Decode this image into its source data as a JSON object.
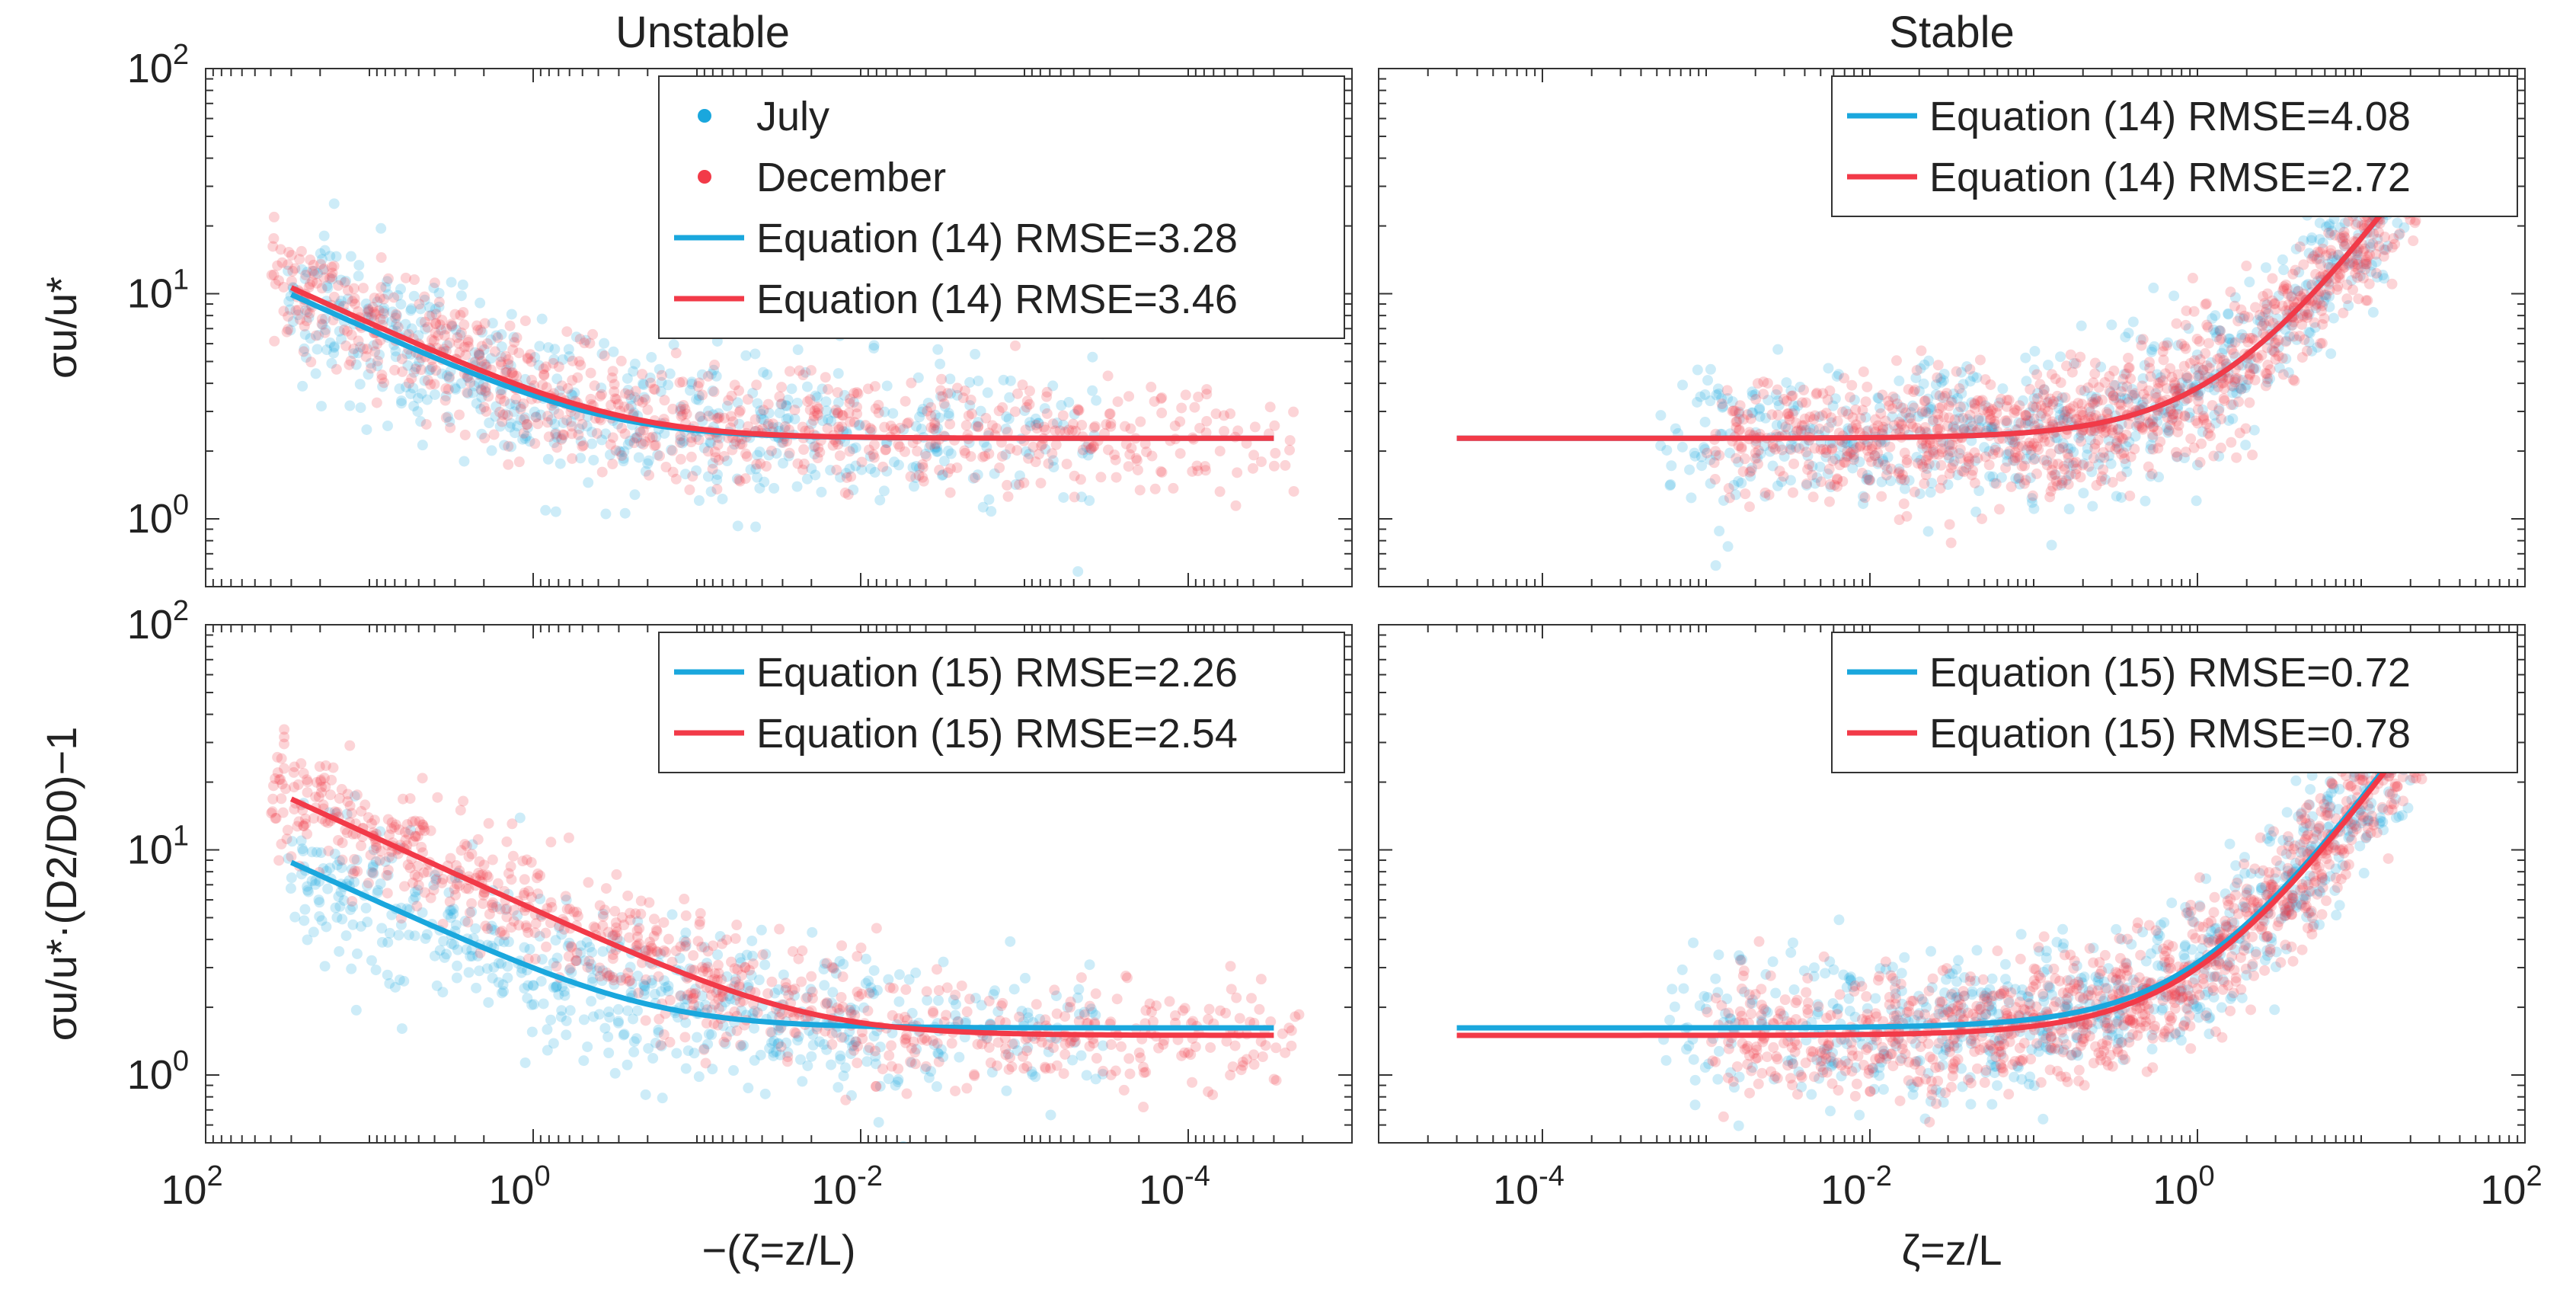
{
  "chart_data": [
    {
      "type": "scatter",
      "panel": "top-left",
      "title": "Unstable",
      "xlabel": "",
      "ylabel": "σu/u*",
      "xscale": "log",
      "yscale": "log",
      "xdir": "reverse",
      "xlim": [
        100,
        1e-05
      ],
      "ylim": [
        0.5,
        100
      ],
      "xticks": [
        100,
        1,
        0.01,
        0.0001
      ],
      "yticks": [
        1,
        10,
        100
      ],
      "xtick_labels": [],
      "ytick_labels": [
        "10^0",
        "10^1",
        "10^2"
      ],
      "legend_location": "top-right",
      "legend": [
        {
          "label": "July",
          "kind": "marker",
          "color": "#1aa7dd"
        },
        {
          "label": "December",
          "kind": "marker",
          "color": "#f23a48"
        },
        {
          "label": "Equation (14) RMSE=3.28",
          "kind": "line",
          "color": "#1aa7dd"
        },
        {
          "label": "Equation (14) RMSE=3.46",
          "kind": "line",
          "color": "#f23a48"
        }
      ],
      "series": [
        {
          "name": "July",
          "kind": "points",
          "color": "#1aa7dd",
          "count": 600,
          "x_log_range": [
            -3.5,
            1.5
          ],
          "y_center": 2.4,
          "spread": 0.17
        },
        {
          "name": "December",
          "kind": "points",
          "color": "#f23a48",
          "count": 800,
          "x_log_range": [
            -4.7,
            1.6
          ],
          "y_center": 2.3,
          "spread": 0.13
        },
        {
          "name": "Equation (14) July",
          "kind": "line",
          "color": "#1aa7dd",
          "model": {
            "form": "unstable",
            "a": 2.28,
            "b": 1.35,
            "c": 3.2,
            "p": 0.333
          },
          "x_domain": [
            3e-05,
            30
          ]
        },
        {
          "name": "Equation (14) December",
          "kind": "line",
          "color": "#f23a48",
          "model": {
            "form": "unstable",
            "a": 2.28,
            "b": 1.45,
            "c": 3.2,
            "p": 0.333
          },
          "x_domain": [
            3e-05,
            30
          ]
        }
      ]
    },
    {
      "type": "scatter",
      "panel": "top-right",
      "title": "Stable",
      "xlabel": "",
      "ylabel": "",
      "xscale": "log",
      "yscale": "log",
      "xlim": [
        1e-05,
        100
      ],
      "ylim": [
        0.5,
        100
      ],
      "xticks": [
        0.0001,
        0.01,
        1,
        100
      ],
      "yticks": [
        1,
        10,
        100
      ],
      "xtick_labels": [],
      "ytick_labels": [],
      "legend_location": "top-right",
      "legend": [
        {
          "label": "Equation (14) RMSE=4.08",
          "kind": "line",
          "color": "#1aa7dd"
        },
        {
          "label": "Equation (14) RMSE=2.72",
          "kind": "line",
          "color": "#f23a48"
        }
      ],
      "series": [
        {
          "name": "July",
          "kind": "points",
          "color": "#1aa7dd",
          "count": 700,
          "x_log_range": [
            -3.3,
            1.3
          ],
          "y_center": 2.5,
          "spread": 0.17
        },
        {
          "name": "December",
          "kind": "points",
          "color": "#f23a48",
          "count": 1100,
          "x_log_range": [
            -3.0,
            1.4
          ],
          "y_center": 2.5,
          "spread": 0.14
        },
        {
          "name": "Equation (14) July",
          "kind": "line",
          "color": "#1aa7dd",
          "model": {
            "form": "stable",
            "a": 2.28,
            "b": 1.85
          },
          "x_domain": [
            3e-05,
            30
          ]
        },
        {
          "name": "Equation (14) December",
          "kind": "line",
          "color": "#f23a48",
          "model": {
            "form": "stable",
            "a": 2.28,
            "b": 1.85
          },
          "x_domain": [
            3e-05,
            30
          ]
        }
      ]
    },
    {
      "type": "scatter",
      "panel": "bottom-left",
      "title": "",
      "xlabel": "−(ζ=z/L)",
      "ylabel": "σu/u*·(D2/D0)−1",
      "xscale": "log",
      "yscale": "log",
      "xdir": "reverse",
      "xlim": [
        100,
        1e-05
      ],
      "ylim": [
        0.5,
        100
      ],
      "xticks": [
        100,
        1,
        0.01,
        0.0001
      ],
      "yticks": [
        1,
        10,
        100
      ],
      "xtick_labels": [
        "10^2",
        "10^0",
        "10^-2",
        "10^-4"
      ],
      "ytick_labels": [
        "10^0",
        "10^1",
        "10^2"
      ],
      "legend_location": "top-right",
      "legend": [
        {
          "label": "Equation (15) RMSE=2.26",
          "kind": "line",
          "color": "#1aa7dd"
        },
        {
          "label": "Equation (15) RMSE=2.54",
          "kind": "line",
          "color": "#f23a48"
        }
      ],
      "series": [
        {
          "name": "July",
          "kind": "points",
          "color": "#1aa7dd",
          "count": 600,
          "x_log_range": [
            -3.5,
            1.5
          ],
          "y_center": 1.7,
          "spread": 0.17
        },
        {
          "name": "December",
          "kind": "points",
          "color": "#f23a48",
          "count": 800,
          "x_log_range": [
            -4.7,
            1.6
          ],
          "y_center": 1.6,
          "spread": 0.13
        },
        {
          "name": "Equation (15) July",
          "kind": "line",
          "color": "#1aa7dd",
          "model": {
            "form": "unstable",
            "a": 1.62,
            "b": 1.2,
            "c": 3.2,
            "p": 0.333
          },
          "x_domain": [
            3e-05,
            30
          ]
        },
        {
          "name": "Equation (15) December",
          "kind": "line",
          "color": "#f23a48",
          "model": {
            "form": "unstable",
            "a": 1.5,
            "b": 2.3,
            "c": 3.2,
            "p": 0.333
          },
          "x_domain": [
            3e-05,
            30
          ]
        }
      ]
    },
    {
      "type": "scatter",
      "panel": "bottom-right",
      "title": "",
      "xlabel": "ζ=z/L",
      "ylabel": "",
      "xscale": "log",
      "yscale": "log",
      "xlim": [
        1e-05,
        100
      ],
      "ylim": [
        0.5,
        100
      ],
      "xticks": [
        0.0001,
        0.01,
        1,
        100
      ],
      "yticks": [
        1,
        10,
        100
      ],
      "xtick_labels": [
        "10^-4",
        "10^-2",
        "10^0",
        "10^2"
      ],
      "ytick_labels": [],
      "legend_location": "top-right",
      "legend": [
        {
          "label": "Equation (15) RMSE=0.72",
          "kind": "line",
          "color": "#1aa7dd"
        },
        {
          "label": "Equation (15) RMSE=0.78",
          "kind": "line",
          "color": "#f23a48"
        }
      ],
      "series": [
        {
          "name": "July",
          "kind": "points",
          "color": "#1aa7dd",
          "count": 700,
          "x_log_range": [
            -3.3,
            1.3
          ],
          "y_center": 1.85,
          "spread": 0.17
        },
        {
          "name": "December",
          "kind": "points",
          "color": "#f23a48",
          "count": 1100,
          "x_log_range": [
            -3.0,
            1.4
          ],
          "y_center": 1.8,
          "spread": 0.14
        },
        {
          "name": "Equation (15) July",
          "kind": "line",
          "color": "#1aa7dd",
          "model": {
            "form": "stable",
            "a": 1.62,
            "b": 1.85
          },
          "x_domain": [
            3e-05,
            30
          ]
        },
        {
          "name": "Equation (15) December",
          "kind": "line",
          "color": "#f23a48",
          "model": {
            "form": "stable",
            "a": 1.5,
            "b": 1.8
          },
          "x_domain": [
            3e-05,
            30
          ]
        }
      ]
    }
  ]
}
